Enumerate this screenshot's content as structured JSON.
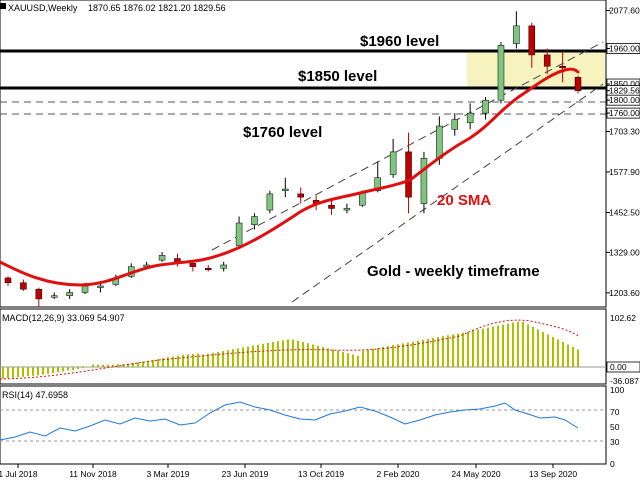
{
  "header": {
    "symbol": "XAUUSD,Weekly",
    "ohlc": "1870.65 1876.02 1821.20 1829.56"
  },
  "annotations": {
    "level_1960": "$1960 level",
    "level_1850": "$1850 level",
    "level_1760": "$1760 level",
    "sma": "20 SMA",
    "caption": "Gold - weekly timeframe"
  },
  "chart_data": [
    {
      "type": "candlestick",
      "title": "XAUUSD,Weekly",
      "price_axis_ticks": [
        "2077.60",
        "1960.00",
        "1850.00",
        "1829.56",
        "1800.00",
        "1760.00",
        "1703.30",
        "1577.90",
        "1452.50",
        "1329.00",
        "1203.60"
      ],
      "date_axis_ticks": [
        "1 Jul 2018",
        "11 Nov 2018",
        "3 Mar 2019",
        "23 Jun 2019",
        "13 Oct 2019",
        "2 Feb 2020",
        "24 May 2020",
        "13 Sep 2020"
      ],
      "ylim": [
        1160,
        2110
      ],
      "horizontal_levels": [
        {
          "price": 1960,
          "style": "solid"
        },
        {
          "price": 1850,
          "style": "solid"
        },
        {
          "price": 1800,
          "style": "dashed"
        },
        {
          "price": 1760,
          "style": "dashed"
        }
      ],
      "highlight_zone": {
        "price_from": 1850,
        "price_to": 1960,
        "color": "#f7f3bf"
      },
      "trend_channel": {
        "upper": [
          [
            "23 Jun 2019",
            1450
          ],
          [
            "13 Sep 2020",
            2090
          ]
        ],
        "lower": [
          [
            "13 Oct 2019",
            1160
          ],
          [
            "13 Sep 2020",
            1860
          ]
        ],
        "style": "dashed"
      },
      "sma_20": {
        "color": "#e01010",
        "points": [
          [
            "1 Jul 2018",
            1300
          ],
          [
            "11 Nov 2018",
            1222
          ],
          [
            "3 Mar 2019",
            1268
          ],
          [
            "23 Jun 2019",
            1330
          ],
          [
            "13 Oct 2019",
            1478
          ],
          [
            "2 Feb 2020",
            1540
          ],
          [
            "24 May 2020",
            1700
          ],
          [
            "13 Sep 2020",
            1870
          ],
          [
            "4 Oct 2020",
            1918
          ]
        ]
      },
      "candles": [
        [
          "1 Jul 2018",
          1250,
          1255,
          1225,
          1235
        ],
        [
          "22 Jul 2018",
          1235,
          1245,
          1210,
          1215
        ],
        [
          "12 Aug 2018",
          1215,
          1220,
          1160,
          1185
        ],
        [
          "2 Sep 2018",
          1190,
          1205,
          1185,
          1195
        ],
        [
          "23 Sep 2018",
          1195,
          1215,
          1185,
          1205
        ],
        [
          "14 Oct 2018",
          1205,
          1235,
          1200,
          1225
        ],
        [
          "11 Nov 2018",
          1220,
          1240,
          1205,
          1225
        ],
        [
          "2 Dec 2018",
          1230,
          1260,
          1225,
          1250
        ],
        [
          "23 Dec 2018",
          1255,
          1295,
          1250,
          1285
        ],
        [
          "13 Jan 2019",
          1285,
          1300,
          1280,
          1290
        ],
        [
          "3 Feb 2019",
          1305,
          1330,
          1300,
          1320
        ],
        [
          "3 Mar 2019",
          1310,
          1325,
          1285,
          1295
        ],
        [
          "24 Mar 2019",
          1295,
          1300,
          1270,
          1285
        ],
        [
          "14 Apr 2019",
          1280,
          1290,
          1270,
          1275
        ],
        [
          "5 May 2019",
          1280,
          1300,
          1270,
          1290
        ],
        [
          "23 Jun 2019",
          1350,
          1440,
          1340,
          1420
        ],
        [
          "14 Jul 2019",
          1415,
          1450,
          1400,
          1440
        ],
        [
          "4 Aug 2019",
          1460,
          1520,
          1450,
          1510
        ],
        [
          "25 Aug 2019",
          1520,
          1560,
          1500,
          1525
        ],
        [
          "15 Sep 2019",
          1510,
          1530,
          1480,
          1500
        ],
        [
          "13 Oct 2019",
          1490,
          1505,
          1460,
          1480
        ],
        [
          "3 Nov 2019",
          1475,
          1490,
          1445,
          1465
        ],
        [
          "24 Nov 2019",
          1460,
          1480,
          1450,
          1465
        ],
        [
          "15 Dec 2019",
          1475,
          1520,
          1470,
          1515
        ],
        [
          "5 Jan 2020",
          1520,
          1610,
          1515,
          1560
        ],
        [
          "2 Feb 2020",
          1570,
          1680,
          1560,
          1640
        ],
        [
          "23 Feb 2020",
          1640,
          1700,
          1450,
          1500
        ],
        [
          "15 Mar 2020",
          1480,
          1640,
          1450,
          1620
        ],
        [
          "5 Apr 2020",
          1620,
          1750,
          1600,
          1720
        ],
        [
          "26 Apr 2020",
          1710,
          1760,
          1690,
          1740
        ],
        [
          "24 May 2020",
          1730,
          1790,
          1710,
          1760
        ],
        [
          "14 Jun 2020",
          1760,
          1810,
          1740,
          1800
        ],
        [
          "5 Jul 2020",
          1800,
          1980,
          1790,
          1970
        ],
        [
          "26 Jul 2020",
          1975,
          2075,
          1960,
          2030
        ],
        [
          "16 Aug 2020",
          2030,
          2040,
          1900,
          1940
        ],
        [
          "13 Sep 2020",
          1940,
          1960,
          1880,
          1905
        ],
        [
          "27 Sep 2020",
          1905,
          1950,
          1855,
          1900
        ],
        [
          "4 Oct 2020",
          1870.65,
          1876.02,
          1821.2,
          1829.56
        ]
      ]
    },
    {
      "type": "bar",
      "title": "MACD(12,26,9) 33.069 54.907",
      "ylim": [
        -36.087,
        102.62
      ],
      "axis_ticks": [
        "102.62",
        "0.00",
        "-36.087"
      ],
      "signal_color": "#e01010",
      "bar_color": "#a8c200",
      "note": "histogram rises from below zero to a peak near 100 around Aug 2020 and then declines"
    },
    {
      "type": "line",
      "title": "RSI(14) 47.6958",
      "ylim": [
        0,
        100
      ],
      "axis_ticks": [
        "100",
        "70",
        "50",
        "30",
        "0"
      ],
      "line_color": "#1e78d8",
      "note": "oscillates mostly between 45 and 80, peaking near 85 in Aug 2020"
    }
  ]
}
